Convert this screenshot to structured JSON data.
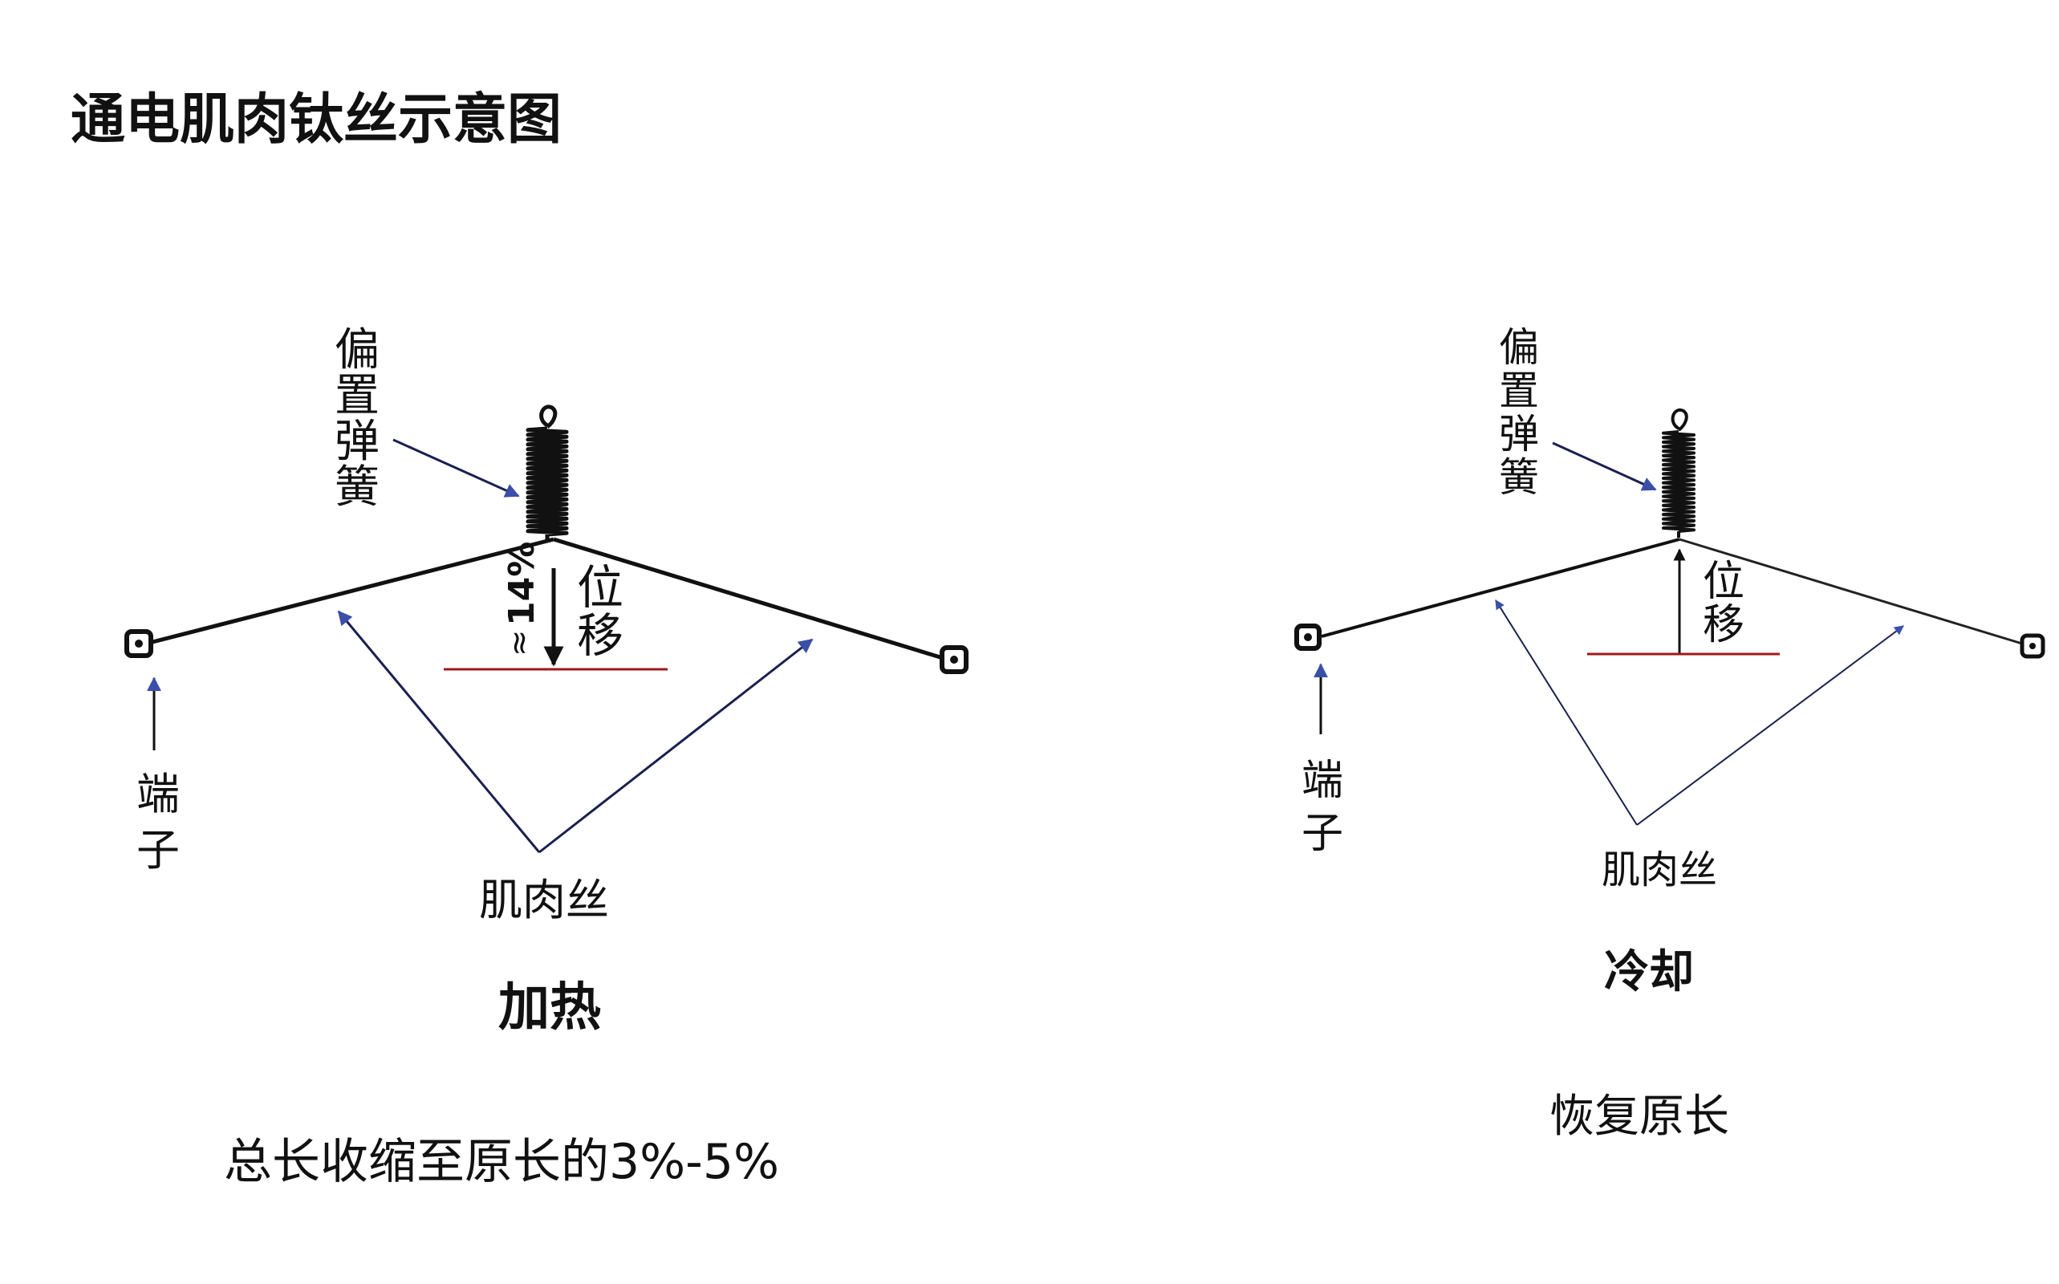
{
  "title": "通电肌肉钛丝示意图",
  "colors": {
    "ink": "#111111",
    "arrow_fill": "#3a4fa8",
    "baseline_red": "#a01818"
  },
  "heating": {
    "spring_label": [
      "偏",
      "置",
      "弹",
      "簧"
    ],
    "displacement_label": [
      "位",
      "移"
    ],
    "percent_label": "14%",
    "approx_symbol": "≈",
    "terminal_label": [
      "端",
      "子"
    ],
    "wire_label": "肌肉丝",
    "state_label": "加热",
    "caption": "总长收缩至原长的3%-5%"
  },
  "cooling": {
    "spring_label": [
      "偏",
      "置",
      "弹",
      "簧"
    ],
    "displacement_label": [
      "位",
      "移"
    ],
    "terminal_label": [
      "端",
      "子"
    ],
    "wire_label": "肌肉丝",
    "state_label": "冷却",
    "caption": "恢复原长"
  }
}
